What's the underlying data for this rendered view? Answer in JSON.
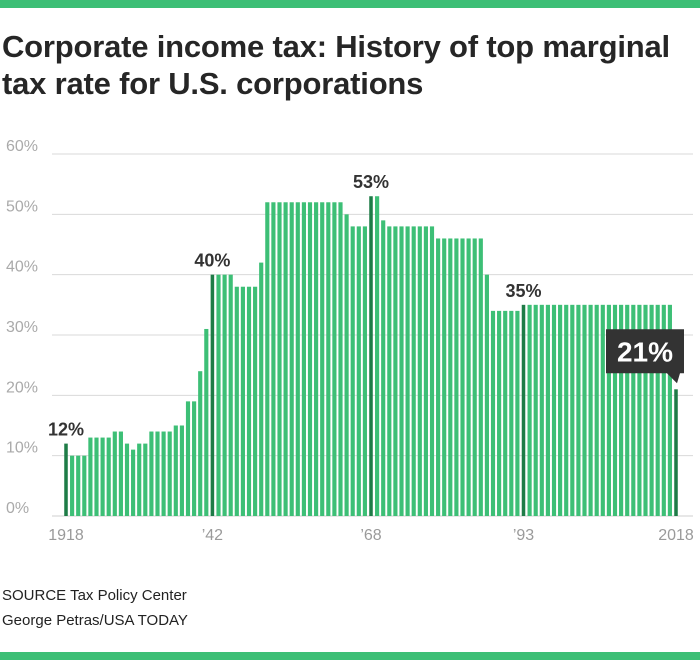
{
  "title": "Corporate income tax: History of top marginal tax rate for U.S. corporations",
  "source": "SOURCE Tax Policy Center",
  "credit": "George Petras/USA TODAY",
  "colors": {
    "accent": "#3dbf76",
    "bar": "#3dbf76",
    "highlight": "#1e7c47",
    "callout_bg": "#333333"
  },
  "chart_data": {
    "type": "bar",
    "title": "Corporate income tax: History of top marginal tax rate for U.S. corporations",
    "xlabel": "",
    "ylabel": "",
    "ylim": [
      0,
      60
    ],
    "yticks": [
      "0%",
      "10%",
      "20%",
      "30%",
      "40%",
      "50%",
      "60%"
    ],
    "x_tick_labels": [
      {
        "year": 1918,
        "label": "1918"
      },
      {
        "year": 1942,
        "label": "’42"
      },
      {
        "year": 1968,
        "label": "’68"
      },
      {
        "year": 1993,
        "label": "’93"
      },
      {
        "year": 2018,
        "label": "2018"
      }
    ],
    "years": [
      1918,
      1919,
      1920,
      1921,
      1922,
      1923,
      1924,
      1925,
      1926,
      1927,
      1928,
      1929,
      1930,
      1931,
      1932,
      1933,
      1934,
      1935,
      1936,
      1937,
      1938,
      1939,
      1940,
      1941,
      1942,
      1943,
      1944,
      1945,
      1946,
      1947,
      1948,
      1949,
      1950,
      1951,
      1952,
      1953,
      1954,
      1955,
      1956,
      1957,
      1958,
      1959,
      1960,
      1961,
      1962,
      1963,
      1964,
      1965,
      1966,
      1967,
      1968,
      1969,
      1970,
      1971,
      1972,
      1973,
      1974,
      1975,
      1976,
      1977,
      1978,
      1979,
      1980,
      1981,
      1982,
      1983,
      1984,
      1985,
      1986,
      1987,
      1988,
      1989,
      1990,
      1991,
      1992,
      1993,
      1994,
      1995,
      1996,
      1997,
      1998,
      1999,
      2000,
      2001,
      2002,
      2003,
      2004,
      2005,
      2006,
      2007,
      2008,
      2009,
      2010,
      2011,
      2012,
      2013,
      2014,
      2015,
      2016,
      2017,
      2018
    ],
    "values": [
      12,
      10,
      10,
      10,
      13,
      13,
      13,
      13,
      14,
      14,
      12,
      11,
      12,
      12,
      14,
      14,
      14,
      14,
      15,
      15,
      19,
      19,
      24,
      31,
      40,
      40,
      40,
      40,
      38,
      38,
      38,
      38,
      42,
      52,
      52,
      52,
      52,
      52,
      52,
      52,
      52,
      52,
      52,
      52,
      52,
      52,
      50,
      48,
      48,
      48,
      53,
      53,
      49,
      48,
      48,
      48,
      48,
      48,
      48,
      48,
      48,
      46,
      46,
      46,
      46,
      46,
      46,
      46,
      46,
      40,
      34,
      34,
      34,
      34,
      34,
      35,
      35,
      35,
      35,
      35,
      35,
      35,
      35,
      35,
      35,
      35,
      35,
      35,
      35,
      35,
      35,
      35,
      35,
      35,
      35,
      35,
      35,
      35,
      35,
      35,
      21
    ],
    "highlight_years": [
      1918,
      1942,
      1968,
      1993,
      2018
    ],
    "annotations": [
      {
        "year": 1918,
        "value": 12,
        "label": "12%"
      },
      {
        "year": 1942,
        "value": 40,
        "label": "40%"
      },
      {
        "year": 1968,
        "value": 53,
        "label": "53%"
      },
      {
        "year": 1993,
        "value": 35,
        "label": "35%"
      },
      {
        "year": 2018,
        "value": 21,
        "label": "21%",
        "callout": true
      }
    ]
  }
}
